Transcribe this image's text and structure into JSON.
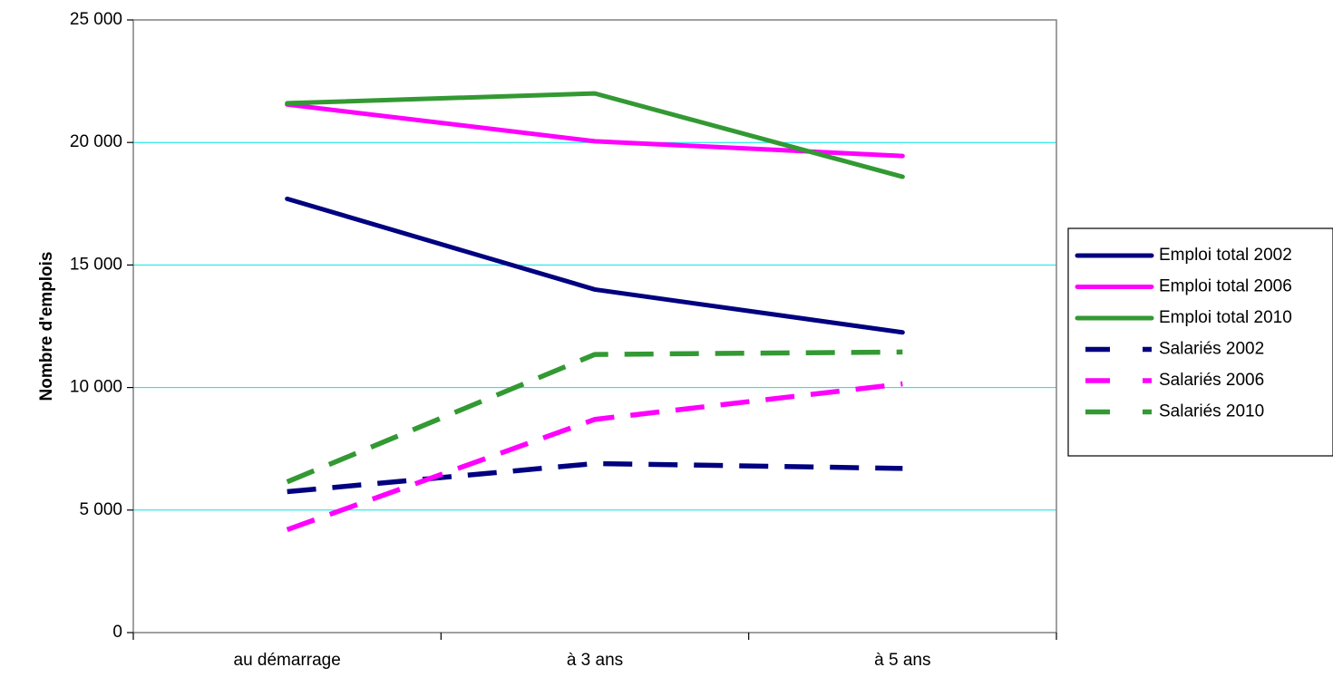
{
  "chart_data": {
    "type": "line",
    "title": "",
    "xlabel": "",
    "ylabel": "Nombre d'emplois",
    "categories": [
      "au démarrage",
      "à 3 ans",
      "à 5 ans"
    ],
    "ylim": [
      0,
      25000
    ],
    "yticks": [
      {
        "value": 0,
        "label": "0"
      },
      {
        "value": 5000,
        "label": "5 000"
      },
      {
        "value": 10000,
        "label": "10 000"
      },
      {
        "value": 15000,
        "label": "15 000"
      },
      {
        "value": 20000,
        "label": "20 000"
      },
      {
        "value": 25000,
        "label": "25 000"
      }
    ],
    "grid": "horizontal",
    "gridColor": "#00e5e5",
    "legend": "right",
    "series": [
      {
        "name": "Emploi total 2002",
        "values": [
          17700,
          14000,
          12250
        ],
        "color": "#000080",
        "style": "solid"
      },
      {
        "name": "Emploi total 2006",
        "values": [
          21550,
          20050,
          19450
        ],
        "color": "#ff00ff",
        "style": "solid"
      },
      {
        "name": "Emploi total 2010",
        "values": [
          21600,
          22000,
          18600
        ],
        "color": "#339933",
        "style": "solid"
      },
      {
        "name": "Salariés 2002",
        "values": [
          5750,
          6900,
          6700
        ],
        "color": "#000080",
        "style": "dashed"
      },
      {
        "name": "Salariés 2006",
        "values": [
          4200,
          8700,
          10150
        ],
        "color": "#ff00ff",
        "style": "dashed"
      },
      {
        "name": "Salariés 2010",
        "values": [
          6150,
          11350,
          11450
        ],
        "color": "#339933",
        "style": "dashed"
      }
    ]
  }
}
